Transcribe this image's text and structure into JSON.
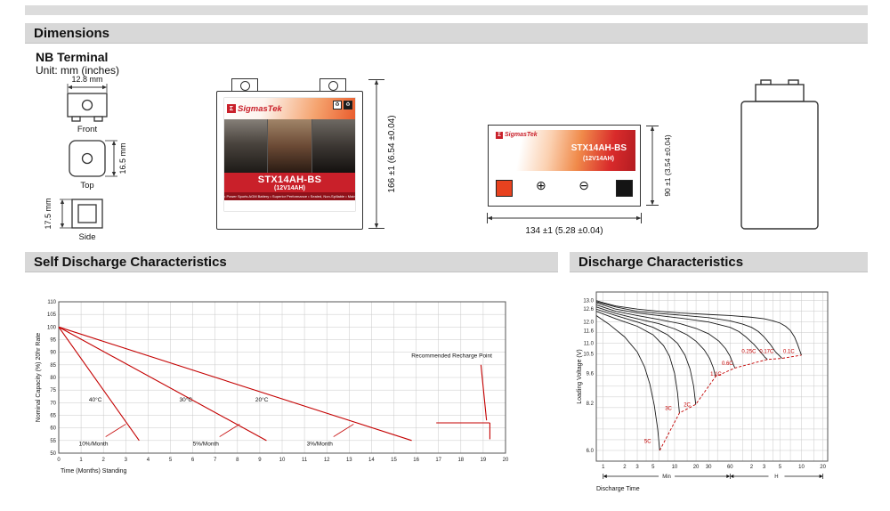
{
  "header": {
    "dimensions_title": "Dimensions",
    "self_discharge_title": "Self Discharge Characteristics",
    "discharge_title": "Discharge Characteristics"
  },
  "terminal": {
    "heading": "NB Terminal",
    "unit": "Unit: mm (inches)",
    "front_dim": "12.8 mm",
    "front_label": "Front",
    "top_dim": "16.5 mm",
    "top_label": "Top",
    "side_dim": "17.5 mm",
    "side_label": "Side"
  },
  "battery": {
    "sigma": "Σ",
    "brand": "SigmasTek",
    "model": "STX14AH-BS",
    "rating": "(12V14AH)",
    "features": "• Power Sports AGM Battery   • Superior Performance   • Sealed, Non-Spillable   • Maintenance Free",
    "height_dim": "166 ±1 (6.54 ±0.04)",
    "width_dim": "134 ±1 (5.28 ±0.04)",
    "depth_dim": "90 ±1 (3.54 ±0.04)",
    "plus_symbol": "⊕",
    "minus_symbol": "⊖",
    "recycle_icon": "♻",
    "accent_red": "#c9202a"
  },
  "chart_data": [
    {
      "type": "line",
      "title": "Self Discharge Characteristics",
      "xlabel": "Time (Months) Standing",
      "ylabel": "Nominal Capacity (%) 20hr Rate",
      "xlim": [
        0,
        20
      ],
      "xtick_step": 1,
      "ylim": [
        50,
        110
      ],
      "ytick_step": 5,
      "grid": true,
      "line_color": "#c40000",
      "series": [
        {
          "name": "40°C",
          "rate": "10%/Month",
          "points": [
            [
              0,
              100
            ],
            [
              3.6,
              55
            ]
          ]
        },
        {
          "name": "30°C",
          "rate": "5%/Month",
          "points": [
            [
              0,
              100
            ],
            [
              9.3,
              55
            ]
          ]
        },
        {
          "name": "20°C",
          "rate": "3%/Month",
          "points": [
            [
              0,
              100
            ],
            [
              15.8,
              55
            ]
          ]
        }
      ],
      "annotations": {
        "temp_labels": [
          {
            "text": "40°C",
            "x": 1.35,
            "y": 70.5
          },
          {
            "text": "30°C",
            "x": 5.4,
            "y": 70.5
          },
          {
            "text": "20°C",
            "x": 8.8,
            "y": 70.5
          }
        ],
        "rate_labels": [
          {
            "text": "10%/Month",
            "x": 0.9,
            "y": 53
          },
          {
            "text": "5%/Month",
            "x": 6.0,
            "y": 53
          },
          {
            "text": "3%/Month",
            "x": 11.1,
            "y": 53
          }
        ],
        "leader_ticks": [
          [
            [
              2.1,
              56.5
            ],
            [
              3.0,
              61.5
            ]
          ],
          [
            [
              7.2,
              56.5
            ],
            [
              8.1,
              61.5
            ]
          ],
          [
            [
              12.3,
              56.5
            ],
            [
              13.2,
              61.5
            ]
          ]
        ],
        "recharge": {
          "text": "Recommended Recharge Point",
          "text_x": 19.4,
          "text_y": 88,
          "lines": [
            [
              [
                16.9,
                62
              ],
              [
                19.3,
                62
              ]
            ],
            [
              [
                18.9,
                85
              ],
              [
                19.15,
                63
              ]
            ],
            [
              [
                19.3,
                62
              ],
              [
                19.3,
                55.5
              ]
            ]
          ]
        }
      }
    },
    {
      "type": "line",
      "title": "Discharge Characteristics",
      "xlabel": "Discharge Time",
      "ylabel": "Loading Voltage (V)",
      "x_scale": "log",
      "x_unit_note": "minutes then hours",
      "unit_min": "Min",
      "unit_h": "H",
      "xlim": [
        0.8,
        1400
      ],
      "x_ticks": [
        {
          "v": 1,
          "label": "1"
        },
        {
          "v": 2,
          "label": "2"
        },
        {
          "v": 3,
          "label": "3"
        },
        {
          "v": 5,
          "label": "5"
        },
        {
          "v": 10,
          "label": "10"
        },
        {
          "v": 20,
          "label": "20"
        },
        {
          "v": 30,
          "label": "30"
        },
        {
          "v": 60,
          "label": "60"
        },
        {
          "v": 120,
          "label": "2"
        },
        {
          "v": 180,
          "label": "3"
        },
        {
          "v": 300,
          "label": "5"
        },
        {
          "v": 600,
          "label": "10"
        },
        {
          "v": 1200,
          "label": "20"
        }
      ],
      "x_grid": [
        1,
        2,
        3,
        4,
        5,
        6,
        8,
        10,
        15,
        20,
        30,
        40,
        60,
        90,
        120,
        180,
        240,
        300,
        420,
        600,
        900,
        1200
      ],
      "ylim": [
        5.5,
        13.4
      ],
      "y_grid": [
        6,
        6.5,
        7,
        7.5,
        8,
        8.5,
        9,
        9.5,
        10,
        10.5,
        11,
        11.5,
        12,
        12.5,
        13
      ],
      "y_ticks": [
        13.0,
        12.6,
        12.0,
        11.6,
        11.0,
        10.5,
        9.6,
        8.2,
        6.0
      ],
      "series": [
        {
          "name": "0.1C",
          "label_xy": [
            400,
            10.55
          ],
          "points": [
            [
              0.8,
              13.0
            ],
            [
              1,
              12.9
            ],
            [
              1.5,
              12.75
            ],
            [
              3,
              12.6
            ],
            [
              6,
              12.5
            ],
            [
              12,
              12.42
            ],
            [
              30,
              12.35
            ],
            [
              60,
              12.3
            ],
            [
              120,
              12.22
            ],
            [
              180,
              12.15
            ],
            [
              240,
              12.05
            ],
            [
              300,
              11.95
            ],
            [
              360,
              11.8
            ],
            [
              420,
              11.6
            ],
            [
              480,
              11.3
            ],
            [
              530,
              10.95
            ],
            [
              570,
              10.65
            ],
            [
              600,
              10.45
            ]
          ]
        },
        {
          "name": "0.17C",
          "label_xy": [
            195,
            10.55
          ],
          "points": [
            [
              0.8,
              12.95
            ],
            [
              1.5,
              12.7
            ],
            [
              3,
              12.5
            ],
            [
              6,
              12.4
            ],
            [
              12,
              12.32
            ],
            [
              30,
              12.2
            ],
            [
              60,
              12.05
            ],
            [
              90,
              11.9
            ],
            [
              120,
              11.75
            ],
            [
              150,
              11.55
            ],
            [
              180,
              11.3
            ],
            [
              220,
              10.95
            ],
            [
              260,
              10.6
            ],
            [
              300,
              10.4
            ],
            [
              320,
              10.3
            ]
          ]
        },
        {
          "name": "0.25C",
          "label_xy": [
            110,
            10.55
          ],
          "points": [
            [
              0.8,
              12.9
            ],
            [
              1.5,
              12.6
            ],
            [
              3,
              12.42
            ],
            [
              6,
              12.3
            ],
            [
              12,
              12.18
            ],
            [
              30,
              12.0
            ],
            [
              60,
              11.75
            ],
            [
              80,
              11.55
            ],
            [
              100,
              11.3
            ],
            [
              130,
              10.95
            ],
            [
              160,
              10.6
            ],
            [
              185,
              10.35
            ],
            [
              200,
              10.25
            ]
          ]
        },
        {
          "name": "0.6C",
          "label_xy": [
            55,
            10.0
          ],
          "points": [
            [
              0.8,
              12.8
            ],
            [
              1.5,
              12.5
            ],
            [
              3,
              12.3
            ],
            [
              6,
              12.12
            ],
            [
              12,
              11.92
            ],
            [
              20,
              11.7
            ],
            [
              30,
              11.45
            ],
            [
              42,
              11.1
            ],
            [
              52,
              10.75
            ],
            [
              60,
              10.4
            ],
            [
              66,
              10.05
            ],
            [
              70,
              9.85
            ]
          ]
        },
        {
          "name": "1.1C",
          "label_xy": [
            38,
            9.5
          ],
          "points": [
            [
              0.8,
              12.7
            ],
            [
              1.5,
              12.4
            ],
            [
              3,
              12.15
            ],
            [
              6,
              11.92
            ],
            [
              10,
              11.68
            ],
            [
              15,
              11.4
            ],
            [
              20,
              11.1
            ],
            [
              26,
              10.7
            ],
            [
              31,
              10.3
            ],
            [
              35,
              9.85
            ],
            [
              37.5,
              9.45
            ]
          ]
        },
        {
          "name": "2C",
          "label_xy": [
            15,
            8.05
          ],
          "points": [
            [
              0.8,
              12.6
            ],
            [
              1.5,
              12.3
            ],
            [
              3,
              12.0
            ],
            [
              5,
              11.75
            ],
            [
              8,
              11.4
            ],
            [
              11,
              11.0
            ],
            [
              14,
              10.45
            ],
            [
              16.5,
              9.8
            ],
            [
              18.5,
              9.0
            ],
            [
              19.8,
              8.15
            ]
          ]
        },
        {
          "name": "3C",
          "label_xy": [
            8.2,
            7.9
          ],
          "points": [
            [
              0.8,
              12.5
            ],
            [
              1.5,
              12.15
            ],
            [
              3,
              11.8
            ],
            [
              5,
              11.4
            ],
            [
              7,
              10.9
            ],
            [
              8.5,
              10.4
            ],
            [
              10,
              9.6
            ],
            [
              11,
              8.7
            ],
            [
              11.7,
              7.75
            ]
          ]
        },
        {
          "name": "5C",
          "label_xy": [
            4.2,
            6.35
          ],
          "points": [
            [
              0.8,
              12.3
            ],
            [
              1.2,
              11.9
            ],
            [
              2,
              11.3
            ],
            [
              3,
              10.6
            ],
            [
              3.8,
              9.9
            ],
            [
              4.5,
              9.1
            ],
            [
              5.2,
              8.1
            ],
            [
              5.8,
              7.0
            ],
            [
              6.2,
              6.0
            ]
          ]
        }
      ],
      "cutoff_line": [
        [
          6.2,
          6.0
        ],
        [
          11.7,
          7.75
        ],
        [
          19.8,
          8.15
        ],
        [
          37.5,
          9.45
        ],
        [
          70,
          9.85
        ],
        [
          200,
          10.25
        ],
        [
          320,
          10.3
        ],
        [
          600,
          10.45
        ]
      ]
    }
  ]
}
